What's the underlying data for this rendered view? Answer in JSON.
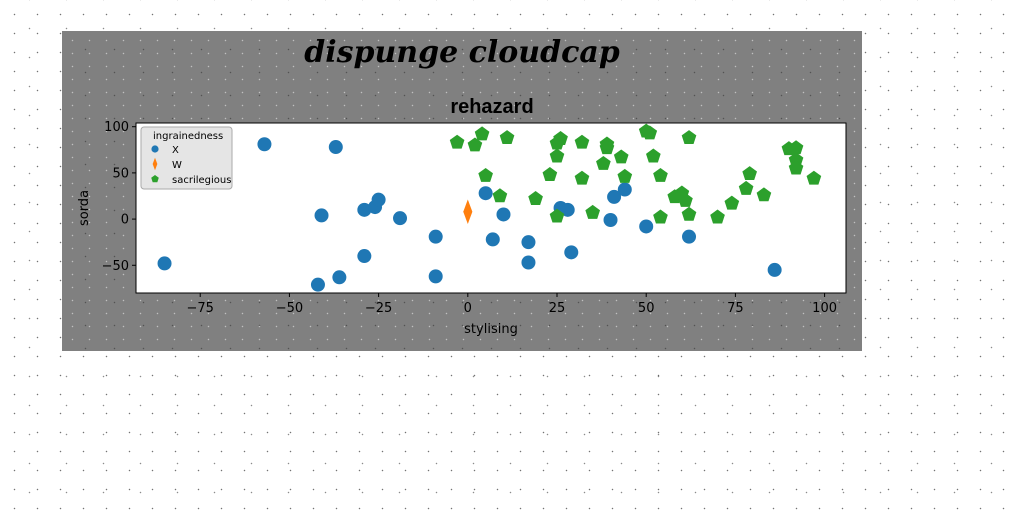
{
  "chart_data": {
    "type": "scatter",
    "suptitle": "dispunge cloudcap",
    "title": "rehazard",
    "xlabel": "stylising",
    "ylabel": "sorda",
    "xlim": [
      -93,
      106
    ],
    "ylim": [
      -80,
      104
    ],
    "xticks": [
      -75,
      -50,
      -25,
      0,
      25,
      50,
      75,
      100
    ],
    "yticks": [
      -50,
      0,
      50,
      100
    ],
    "grid": false,
    "legend": {
      "title": "ingrainedness",
      "placement": "top-left"
    },
    "series": [
      {
        "name": "X",
        "marker": "circle",
        "color": "#1f77b4",
        "points": [
          [
            -85,
            -48
          ],
          [
            -57,
            81
          ],
          [
            -37,
            78
          ],
          [
            -41,
            4
          ],
          [
            -42,
            -71
          ],
          [
            -36,
            -63
          ],
          [
            -29,
            10
          ],
          [
            -29,
            -40
          ],
          [
            -26,
            13
          ],
          [
            -25,
            21
          ],
          [
            -19,
            1
          ],
          [
            -9,
            -19
          ],
          [
            -9,
            -62
          ],
          [
            5,
            28
          ],
          [
            7,
            -22
          ],
          [
            10,
            5
          ],
          [
            17,
            -25
          ],
          [
            17,
            -47
          ],
          [
            26,
            12
          ],
          [
            28,
            10
          ],
          [
            29,
            -36
          ],
          [
            40,
            -1
          ],
          [
            41,
            24
          ],
          [
            44,
            32
          ],
          [
            50,
            -8
          ],
          [
            62,
            -19
          ],
          [
            86,
            -55
          ]
        ]
      },
      {
        "name": "W",
        "marker": "diamond",
        "color": "#ff7f0e",
        "points": [
          [
            0,
            8
          ]
        ]
      },
      {
        "name": "sacrilegious",
        "marker": "pentagon",
        "color": "#2ca02c",
        "points": [
          [
            -3,
            83
          ],
          [
            2,
            80
          ],
          [
            4,
            92
          ],
          [
            5,
            47
          ],
          [
            9,
            25
          ],
          [
            11,
            88
          ],
          [
            19,
            22
          ],
          [
            23,
            48
          ],
          [
            25,
            68
          ],
          [
            25,
            82
          ],
          [
            26,
            87
          ],
          [
            25,
            3
          ],
          [
            32,
            44
          ],
          [
            32,
            83
          ],
          [
            35,
            7
          ],
          [
            38,
            60
          ],
          [
            39,
            81
          ],
          [
            39,
            77
          ],
          [
            43,
            67
          ],
          [
            44,
            46
          ],
          [
            50,
            95
          ],
          [
            51,
            93
          ],
          [
            52,
            68
          ],
          [
            54,
            2
          ],
          [
            54,
            47
          ],
          [
            58,
            24
          ],
          [
            60,
            28
          ],
          [
            61,
            20
          ],
          [
            62,
            5
          ],
          [
            62,
            88
          ],
          [
            70,
            2
          ],
          [
            74,
            17
          ],
          [
            78,
            33
          ],
          [
            79,
            49
          ],
          [
            83,
            26
          ],
          [
            90,
            76
          ],
          [
            92,
            77
          ],
          [
            92,
            64
          ],
          [
            92,
            55
          ],
          [
            97,
            44
          ]
        ]
      }
    ]
  }
}
